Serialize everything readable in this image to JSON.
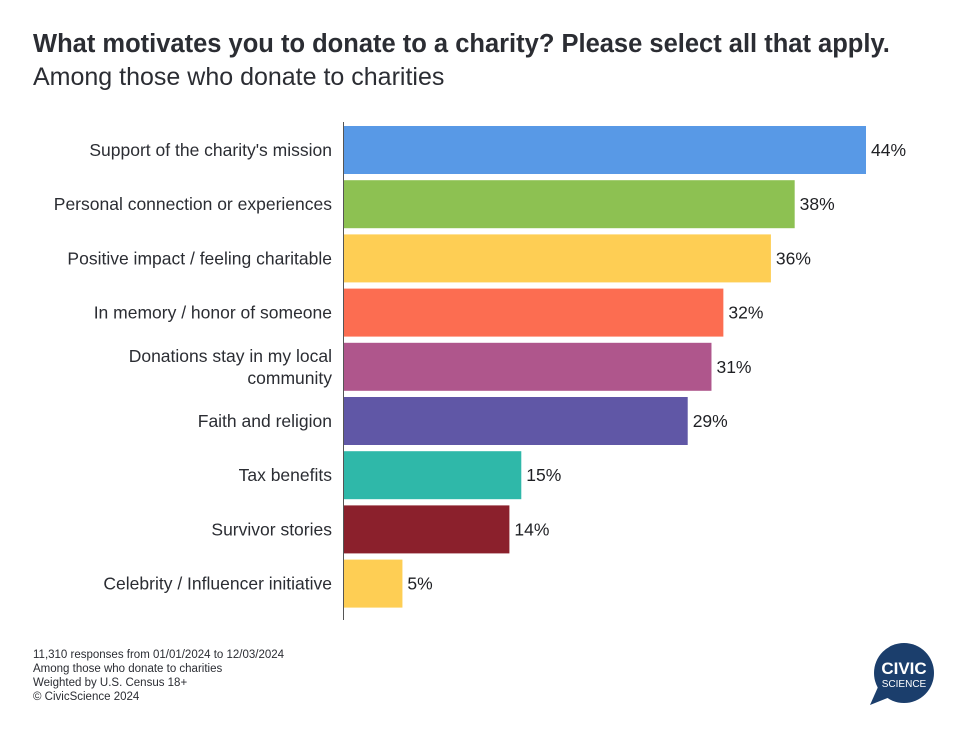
{
  "header": {
    "title": "What motivates you to donate to a charity? Please select all that apply.",
    "subtitle": "Among those who donate to charities"
  },
  "chart_data": {
    "type": "bar",
    "orientation": "horizontal",
    "categories": [
      "Support of the charity's mission",
      "Personal connection or experiences",
      "Positive impact / feeling charitable",
      "In memory / honor of someone",
      "Donations stay in my local community",
      "Faith and religion",
      "Tax benefits",
      "Survivor stories",
      "Celebrity / Influencer initiative"
    ],
    "category_lines": [
      [
        "Support of the charity's mission"
      ],
      [
        "Personal connection or experiences"
      ],
      [
        "Positive impact / feeling charitable"
      ],
      [
        "In memory / honor of someone"
      ],
      [
        "Donations stay in my local",
        "community"
      ],
      [
        "Faith and religion"
      ],
      [
        "Tax benefits"
      ],
      [
        "Survivor stories"
      ],
      [
        "Celebrity / Influencer initiative"
      ]
    ],
    "values": [
      44,
      38,
      36,
      32,
      31,
      29,
      15,
      14,
      5
    ],
    "value_labels": [
      "44%",
      "38%",
      "36%",
      "32%",
      "31%",
      "29%",
      "15%",
      "14%",
      "5%"
    ],
    "colors": [
      "#5899e6",
      "#8dc152",
      "#fece54",
      "#fc6d51",
      "#af568c",
      "#6057a6",
      "#2fb8a9",
      "#8b202c",
      "#fece54"
    ],
    "unit": "%",
    "xlim": [
      0,
      45
    ],
    "grid": false,
    "legend": "none"
  },
  "footnotes": [
    "11,310 responses from 01/01/2024 to 12/03/2024",
    "Among those who donate to charities",
    "Weighted by U.S. Census 18+",
    "© CivicScience 2024"
  ],
  "logo": {
    "line1": "CIVIC",
    "line2": "SCIENCE",
    "color": "#1b3e6c"
  }
}
